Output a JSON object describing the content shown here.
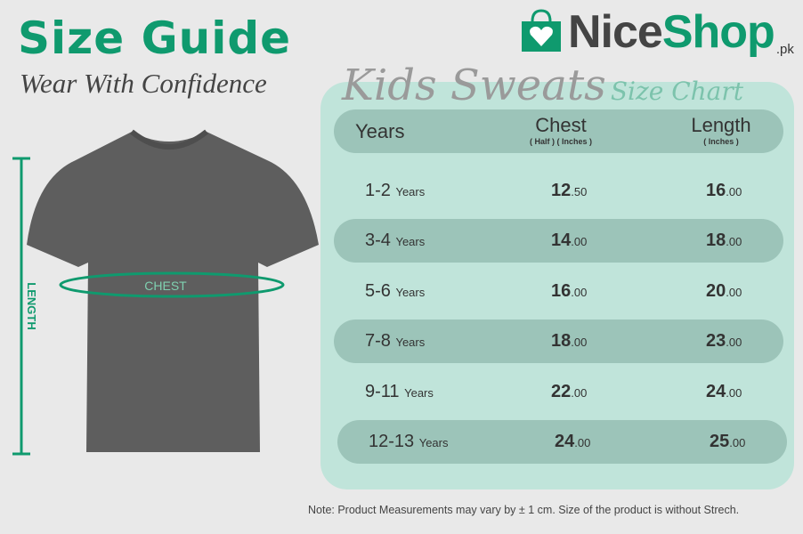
{
  "header": {
    "title": "Size Guide",
    "subtitle": "Wear With Confidence"
  },
  "logo": {
    "part1": "Nice",
    "part2": "Shop",
    "suffix": ".pk",
    "icon": "shopping-bag-heart-icon",
    "brand_color": "#0f9a6e"
  },
  "chart": {
    "title_main": "Kids Sweats",
    "title_sub": "Size Chart"
  },
  "diagram": {
    "chest_label": "CHEST",
    "length_label": "LENGTH",
    "shirt_color": "#5e5e5e"
  },
  "table": {
    "columns": [
      {
        "label": "Years",
        "sub": ""
      },
      {
        "label": "Chest",
        "sub": "( Half ) ( Inches )"
      },
      {
        "label": "Length",
        "sub": "( Inches )"
      }
    ],
    "rows": [
      {
        "age": "1-2",
        "unit": "Years",
        "chest_int": "12",
        "chest_dec": ".50",
        "length_int": "16",
        "length_dec": ".00"
      },
      {
        "age": "3-4",
        "unit": "Years",
        "chest_int": "14",
        "chest_dec": ".00",
        "length_int": "18",
        "length_dec": ".00"
      },
      {
        "age": "5-6",
        "unit": "Years",
        "chest_int": "16",
        "chest_dec": ".00",
        "length_int": "20",
        "length_dec": ".00"
      },
      {
        "age": "7-8",
        "unit": "Years",
        "chest_int": "18",
        "chest_dec": ".00",
        "length_int": "23",
        "length_dec": ".00"
      },
      {
        "age": "9-11",
        "unit": "Years",
        "chest_int": "22",
        "chest_dec": ".00",
        "length_int": "24",
        "length_dec": ".00"
      },
      {
        "age": "12-13",
        "unit": "Years",
        "chest_int": "24",
        "chest_dec": ".00",
        "length_int": "25",
        "length_dec": ".00"
      }
    ]
  },
  "note": "Note: Product Measurements may vary by ± 1 cm. Size of the product is without Strech."
}
